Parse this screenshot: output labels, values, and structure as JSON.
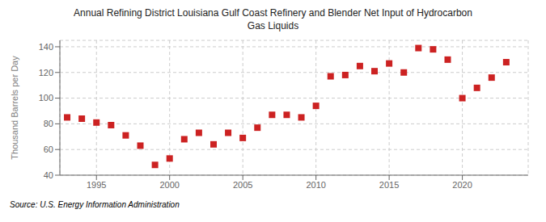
{
  "chart_data": {
    "type": "scatter",
    "title": "Annual Refining District Louisiana Gulf Coast Refinery and Blender Net Input of Hydrocarbon\nGas Liquids",
    "y_label": "Thousand Barrels per Day",
    "annotations": [
      "Source: U.S. Energy Information Administration"
    ],
    "x": [
      1993,
      1994,
      1995,
      1996,
      1997,
      1998,
      1999,
      2000,
      2001,
      2002,
      2003,
      2004,
      2005,
      2006,
      2007,
      2008,
      2009,
      2010,
      2011,
      2012,
      2013,
      2014,
      2015,
      2016,
      2017,
      2018,
      2019,
      2020,
      2021,
      2022,
      2023
    ],
    "values": [
      85,
      84,
      81,
      79,
      71,
      63,
      48,
      53,
      68,
      73,
      64,
      73,
      69,
      77,
      87,
      87,
      85,
      94,
      117,
      118,
      125,
      121,
      127,
      120,
      139,
      138,
      130,
      100,
      108,
      116,
      128
    ],
    "color": "#cc2222",
    "marker": "square",
    "xlim": [
      1992.5,
      2024.5
    ],
    "xticks": [
      1995,
      2000,
      2005,
      2010,
      2015,
      2020
    ],
    "ylim": [
      40,
      145
    ],
    "yticks": [
      40,
      60,
      80,
      100,
      120,
      140
    ],
    "grid": true
  }
}
